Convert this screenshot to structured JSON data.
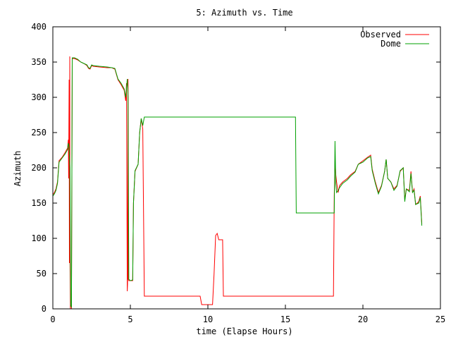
{
  "chart_data": {
    "type": "line",
    "title": "5: Azimuth vs. Time",
    "xlabel": "time (Elapse Hours)",
    "ylabel": "Azimuth",
    "xlim": [
      0,
      25
    ],
    "ylim": [
      0,
      400
    ],
    "xticks": [
      0,
      5,
      10,
      15,
      20,
      25
    ],
    "yticks": [
      0,
      50,
      100,
      150,
      200,
      250,
      300,
      350,
      400
    ],
    "grid": false,
    "legend_position": "top-right",
    "colors": {
      "observed": "#ff0000",
      "dome": "#00a000",
      "axis": "#000000"
    },
    "series": [
      {
        "name": "Observed",
        "color": "#ff0000",
        "points": [
          [
            0.0,
            162
          ],
          [
            0.1,
            165
          ],
          [
            0.2,
            170
          ],
          [
            0.3,
            180
          ],
          [
            0.4,
            210
          ],
          [
            0.6,
            215
          ],
          [
            0.8,
            222
          ],
          [
            0.95,
            228
          ],
          [
            1.0,
            240
          ],
          [
            1.02,
            185
          ],
          [
            1.05,
            325
          ],
          [
            1.07,
            65
          ],
          [
            1.09,
            358
          ],
          [
            1.1,
            90
          ],
          [
            1.13,
            0
          ],
          [
            1.2,
            0
          ],
          [
            1.25,
            355
          ],
          [
            1.4,
            355
          ],
          [
            1.6,
            353
          ],
          [
            1.8,
            350
          ],
          [
            2.0,
            348
          ],
          [
            2.2,
            345
          ],
          [
            2.3,
            341
          ],
          [
            2.4,
            340
          ],
          [
            2.5,
            345
          ],
          [
            2.6,
            344
          ],
          [
            3.0,
            343
          ],
          [
            3.5,
            342
          ],
          [
            3.8,
            342
          ],
          [
            4.0,
            340
          ],
          [
            4.2,
            325
          ],
          [
            4.4,
            318
          ],
          [
            4.6,
            310
          ],
          [
            4.7,
            295
          ],
          [
            4.75,
            320
          ],
          [
            4.8,
            25
          ],
          [
            4.82,
            35
          ],
          [
            4.85,
            326
          ],
          [
            4.87,
            42
          ],
          [
            4.9,
            40
          ],
          [
            5.0,
            40
          ],
          [
            5.15,
            40
          ],
          [
            5.2,
            150
          ],
          [
            5.3,
            195
          ],
          [
            5.5,
            205
          ],
          [
            5.6,
            250
          ],
          [
            5.7,
            270
          ],
          [
            5.8,
            255
          ],
          [
            5.9,
            18
          ],
          [
            6.0,
            18
          ],
          [
            7.0,
            18
          ],
          [
            8.0,
            18
          ],
          [
            9.0,
            18
          ],
          [
            9.5,
            18
          ],
          [
            9.6,
            6
          ],
          [
            10.0,
            6
          ],
          [
            10.3,
            6
          ],
          [
            10.4,
            50
          ],
          [
            10.5,
            104
          ],
          [
            10.6,
            107
          ],
          [
            10.7,
            98
          ],
          [
            10.8,
            98
          ],
          [
            10.95,
            98
          ],
          [
            11.0,
            18
          ],
          [
            12.0,
            18
          ],
          [
            13.0,
            18
          ],
          [
            14.0,
            18
          ],
          [
            15.0,
            18
          ],
          [
            16.0,
            18
          ],
          [
            17.0,
            18
          ],
          [
            18.1,
            18
          ],
          [
            18.15,
            160
          ],
          [
            18.2,
            210
          ],
          [
            18.25,
            190
          ],
          [
            18.3,
            180
          ],
          [
            18.4,
            165
          ],
          [
            18.5,
            175
          ],
          [
            18.7,
            180
          ],
          [
            19.0,
            185
          ],
          [
            19.2,
            190
          ],
          [
            19.5,
            195
          ],
          [
            19.7,
            205
          ],
          [
            20.0,
            210
          ],
          [
            20.3,
            215
          ],
          [
            20.5,
            218
          ],
          [
            20.6,
            198
          ],
          [
            20.8,
            180
          ],
          [
            21.0,
            165
          ],
          [
            21.2,
            175
          ],
          [
            21.4,
            195
          ],
          [
            21.5,
            212
          ],
          [
            21.6,
            185
          ],
          [
            21.8,
            180
          ],
          [
            22.0,
            170
          ],
          [
            22.2,
            175
          ],
          [
            22.4,
            195
          ],
          [
            22.6,
            200
          ],
          [
            22.7,
            155
          ],
          [
            22.8,
            170
          ],
          [
            23.0,
            168
          ],
          [
            23.1,
            195
          ],
          [
            23.2,
            165
          ],
          [
            23.3,
            170
          ],
          [
            23.4,
            148
          ],
          [
            23.6,
            152
          ],
          [
            23.7,
            160
          ],
          [
            23.8,
            120
          ]
        ]
      },
      {
        "name": "Dome",
        "color": "#00a000",
        "points": [
          [
            0.0,
            160
          ],
          [
            0.1,
            163
          ],
          [
            0.2,
            168
          ],
          [
            0.3,
            178
          ],
          [
            0.4,
            208
          ],
          [
            0.6,
            214
          ],
          [
            0.8,
            220
          ],
          [
            0.95,
            226
          ],
          [
            1.0,
            235
          ],
          [
            1.05,
            230
          ],
          [
            1.1,
            200
          ],
          [
            1.15,
            5
          ],
          [
            1.2,
            2
          ],
          [
            1.25,
            356
          ],
          [
            1.4,
            356
          ],
          [
            1.6,
            354
          ],
          [
            1.8,
            350
          ],
          [
            2.0,
            348
          ],
          [
            2.2,
            346
          ],
          [
            2.3,
            342
          ],
          [
            2.4,
            341
          ],
          [
            2.5,
            346
          ],
          [
            2.6,
            345
          ],
          [
            3.0,
            344
          ],
          [
            3.5,
            343
          ],
          [
            3.8,
            342
          ],
          [
            4.0,
            341
          ],
          [
            4.2,
            326
          ],
          [
            4.4,
            320
          ],
          [
            4.6,
            312
          ],
          [
            4.7,
            300
          ],
          [
            4.8,
            326
          ],
          [
            4.85,
            300
          ],
          [
            4.9,
            42
          ],
          [
            5.0,
            40
          ],
          [
            5.15,
            41
          ],
          [
            5.2,
            150
          ],
          [
            5.3,
            196
          ],
          [
            5.5,
            205
          ],
          [
            5.6,
            250
          ],
          [
            5.7,
            270
          ],
          [
            5.8,
            260
          ],
          [
            5.9,
            272
          ],
          [
            6.0,
            272
          ],
          [
            8.0,
            272
          ],
          [
            10.0,
            272
          ],
          [
            12.0,
            272
          ],
          [
            14.0,
            272
          ],
          [
            15.0,
            272
          ],
          [
            15.65,
            272
          ],
          [
            15.7,
            136
          ],
          [
            16.0,
            136
          ],
          [
            17.0,
            136
          ],
          [
            18.0,
            136
          ],
          [
            18.15,
            136
          ],
          [
            18.2,
            238
          ],
          [
            18.25,
            178
          ],
          [
            18.3,
            165
          ],
          [
            18.4,
            168
          ],
          [
            18.5,
            172
          ],
          [
            18.7,
            178
          ],
          [
            19.0,
            183
          ],
          [
            19.2,
            188
          ],
          [
            19.5,
            194
          ],
          [
            19.7,
            205
          ],
          [
            20.0,
            208
          ],
          [
            20.3,
            214
          ],
          [
            20.5,
            216
          ],
          [
            20.6,
            196
          ],
          [
            20.8,
            178
          ],
          [
            21.0,
            163
          ],
          [
            21.2,
            174
          ],
          [
            21.4,
            195
          ],
          [
            21.5,
            212
          ],
          [
            21.6,
            185
          ],
          [
            21.8,
            180
          ],
          [
            22.0,
            168
          ],
          [
            22.2,
            174
          ],
          [
            22.4,
            196
          ],
          [
            22.6,
            200
          ],
          [
            22.7,
            152
          ],
          [
            22.8,
            170
          ],
          [
            23.0,
            166
          ],
          [
            23.1,
            192
          ],
          [
            23.2,
            165
          ],
          [
            23.3,
            168
          ],
          [
            23.4,
            148
          ],
          [
            23.6,
            150
          ],
          [
            23.7,
            158
          ],
          [
            23.8,
            118
          ]
        ]
      }
    ]
  }
}
